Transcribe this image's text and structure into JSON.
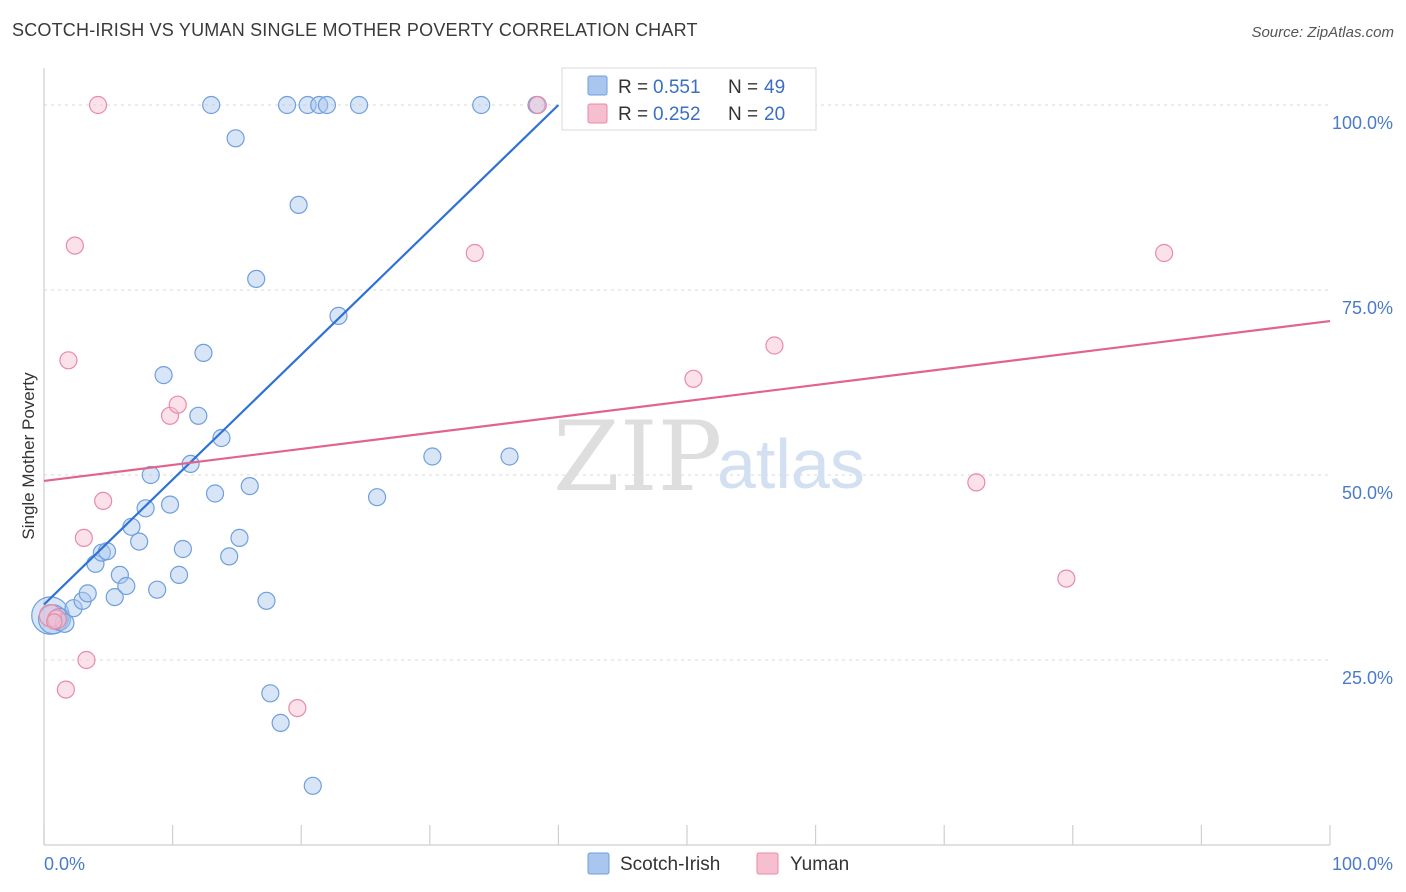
{
  "header": {
    "title": "SCOTCH-IRISH VS YUMAN SINGLE MOTHER POVERTY CORRELATION CHART",
    "source": "Source: ZipAtlas.com"
  },
  "watermark": {
    "zip": "ZIP",
    "atlas": "atlas"
  },
  "colors": {
    "scotch_fill": "#a9c6ee",
    "scotch_stroke": "#6f9fdc",
    "scotch_line": "#2f72d4",
    "yuman_fill": "#f6bfd0",
    "yuman_stroke": "#e98aa8",
    "yuman_line": "#e0648e",
    "grid": "#d9d9d9",
    "axis_label": "#4a7bc8"
  },
  "legend": {
    "r_label": "R =",
    "n_label": "N =",
    "rows": [
      {
        "series": "Scotch-Irish",
        "r": "0.551",
        "n": "49"
      },
      {
        "series": "Yuman",
        "r": "0.252",
        "n": "20"
      }
    ]
  },
  "chart_data": {
    "type": "scatter",
    "title": "SCOTCH-IRISH VS YUMAN SINGLE MOTHER POVERTY CORRELATION CHART",
    "xlabel": "",
    "ylabel": "Single Mother Poverty",
    "xlim": [
      0,
      100
    ],
    "ylim": [
      0,
      105
    ],
    "x_tick_labels": [
      "0.0%",
      "100.0%"
    ],
    "y_ticks": [
      25,
      50,
      75,
      100
    ],
    "y_tick_labels": [
      "25.0%",
      "50.0%",
      "75.0%",
      "100.0%"
    ],
    "grid": true,
    "legend_position": "top-center",
    "series": [
      {
        "name": "Scotch-Irish",
        "r": 0.551,
        "n": 49,
        "trend": {
          "x0": 0,
          "y0": 32.5,
          "x1": 40,
          "y1": 100
        },
        "points": [
          {
            "x": 0.5,
            "y": 31.0,
            "s": 2.2
          },
          {
            "x": 0.7,
            "y": 30.5,
            "s": 1.7
          },
          {
            "x": 1.2,
            "y": 30.5,
            "s": 1.3
          },
          {
            "x": 1.6,
            "y": 30.0,
            "s": 1.1
          },
          {
            "x": 2.3,
            "y": 32.0
          },
          {
            "x": 3.0,
            "y": 33.0
          },
          {
            "x": 3.4,
            "y": 34.0
          },
          {
            "x": 4.0,
            "y": 38.0
          },
          {
            "x": 4.5,
            "y": 39.5
          },
          {
            "x": 4.9,
            "y": 39.7
          },
          {
            "x": 5.5,
            "y": 33.5
          },
          {
            "x": 5.9,
            "y": 36.5
          },
          {
            "x": 6.4,
            "y": 35.0
          },
          {
            "x": 6.8,
            "y": 43.0
          },
          {
            "x": 7.4,
            "y": 41.0
          },
          {
            "x": 7.9,
            "y": 45.5
          },
          {
            "x": 8.3,
            "y": 50.0
          },
          {
            "x": 8.8,
            "y": 34.5
          },
          {
            "x": 9.3,
            "y": 63.5
          },
          {
            "x": 9.8,
            "y": 46.0
          },
          {
            "x": 10.5,
            "y": 36.5
          },
          {
            "x": 10.8,
            "y": 40.0
          },
          {
            "x": 11.4,
            "y": 51.5
          },
          {
            "x": 12.0,
            "y": 58.0
          },
          {
            "x": 12.4,
            "y": 66.5
          },
          {
            "x": 13.0,
            "y": 100.0
          },
          {
            "x": 13.3,
            "y": 47.5
          },
          {
            "x": 13.8,
            "y": 55.0
          },
          {
            "x": 14.4,
            "y": 39.0
          },
          {
            "x": 14.9,
            "y": 95.5
          },
          {
            "x": 15.2,
            "y": 41.5
          },
          {
            "x": 16.0,
            "y": 48.5
          },
          {
            "x": 16.5,
            "y": 76.5
          },
          {
            "x": 17.3,
            "y": 33.0
          },
          {
            "x": 17.6,
            "y": 20.5
          },
          {
            "x": 18.4,
            "y": 16.5
          },
          {
            "x": 18.9,
            "y": 100.0
          },
          {
            "x": 19.8,
            "y": 86.5
          },
          {
            "x": 20.5,
            "y": 100.0
          },
          {
            "x": 20.9,
            "y": 8.0
          },
          {
            "x": 21.4,
            "y": 100.0
          },
          {
            "x": 22.0,
            "y": 100.0
          },
          {
            "x": 22.9,
            "y": 71.5
          },
          {
            "x": 24.5,
            "y": 100.0
          },
          {
            "x": 25.9,
            "y": 47.0
          },
          {
            "x": 30.2,
            "y": 52.5
          },
          {
            "x": 34.0,
            "y": 100.0
          },
          {
            "x": 36.2,
            "y": 52.5
          },
          {
            "x": 38.3,
            "y": 100.0
          }
        ]
      },
      {
        "name": "Yuman",
        "r": 0.252,
        "n": 20,
        "trend": {
          "x0": 0,
          "y0": 49.2,
          "x1": 100,
          "y1": 70.8
        },
        "points": [
          {
            "x": 0.5,
            "y": 31.0,
            "s": 1.3
          },
          {
            "x": 1.0,
            "y": 30.5,
            "s": 1.1
          },
          {
            "x": 1.7,
            "y": 21.0
          },
          {
            "x": 1.9,
            "y": 65.5
          },
          {
            "x": 2.4,
            "y": 81.0
          },
          {
            "x": 3.1,
            "y": 41.5
          },
          {
            "x": 3.3,
            "y": 25.0
          },
          {
            "x": 4.2,
            "y": 100.0
          },
          {
            "x": 4.6,
            "y": 46.5
          },
          {
            "x": 9.8,
            "y": 58.0
          },
          {
            "x": 10.4,
            "y": 59.5
          },
          {
            "x": 19.7,
            "y": 18.5
          },
          {
            "x": 33.5,
            "y": 80.0
          },
          {
            "x": 38.4,
            "y": 100.0
          },
          {
            "x": 50.5,
            "y": 63.0
          },
          {
            "x": 56.8,
            "y": 67.5
          },
          {
            "x": 72.5,
            "y": 49.0
          },
          {
            "x": 79.5,
            "y": 36.0
          },
          {
            "x": 87.1,
            "y": 80.0
          },
          {
            "x": 0.8,
            "y": 30.2,
            "s": 0.9
          }
        ]
      }
    ]
  },
  "bottom_legend": [
    {
      "label": "Scotch-Irish"
    },
    {
      "label": "Yuman"
    }
  ]
}
